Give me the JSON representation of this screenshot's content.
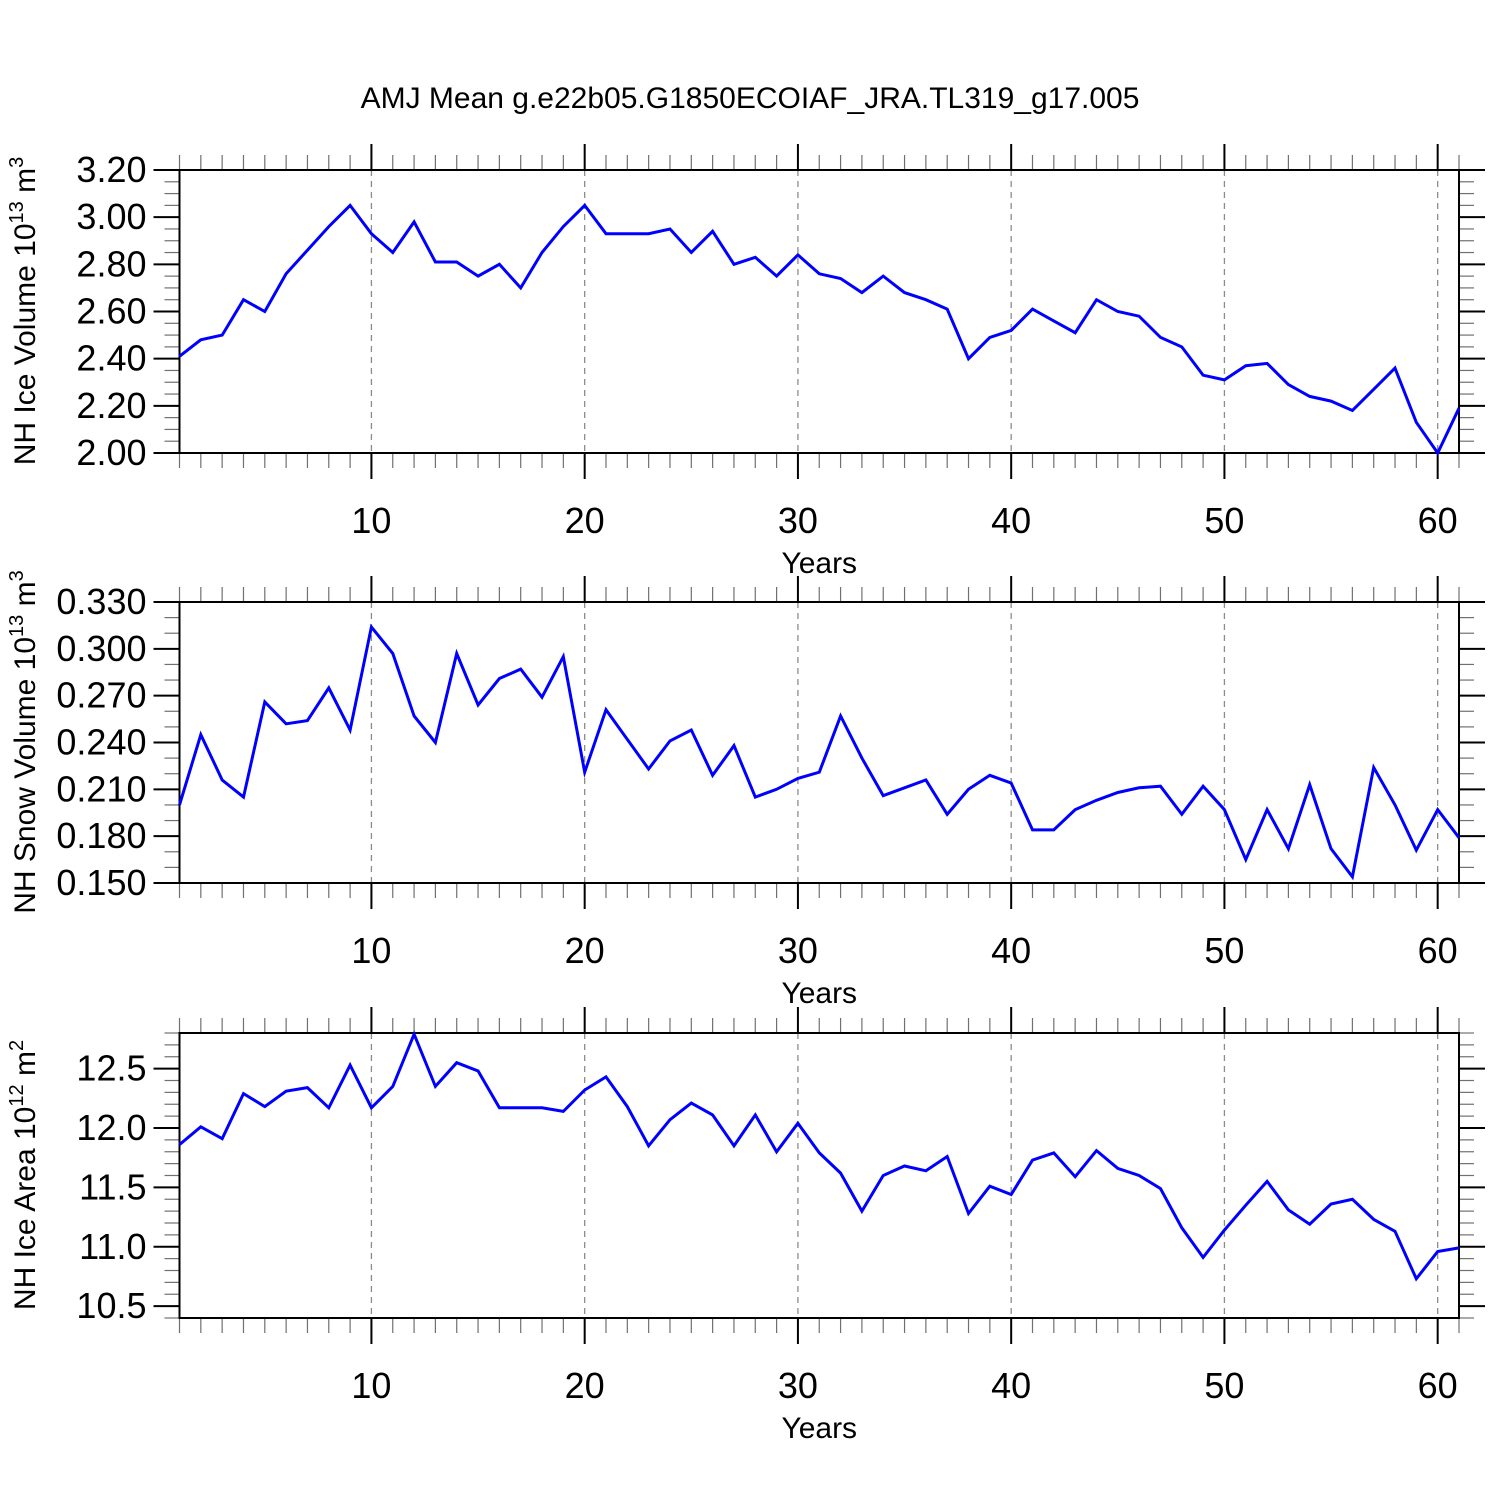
{
  "title": "AMJ Mean g.e22b05.G1850ECOIAF_JRA.TL319_g17.005",
  "colors": {
    "line": "#0000ff",
    "axis": "#000000",
    "grid": "#8c8c8c",
    "minor_tick": "#707070",
    "text": "#000000",
    "background": "#ffffff"
  },
  "years": [
    1,
    2,
    3,
    4,
    5,
    6,
    7,
    8,
    9,
    10,
    11,
    12,
    13,
    14,
    15,
    16,
    17,
    18,
    19,
    20,
    21,
    22,
    23,
    24,
    25,
    26,
    27,
    28,
    29,
    30,
    31,
    32,
    33,
    34,
    35,
    36,
    37,
    38,
    39,
    40,
    41,
    42,
    43,
    44,
    45,
    46,
    47,
    48,
    49,
    50,
    51,
    52,
    53,
    54,
    55,
    56,
    57,
    58,
    59,
    60,
    61
  ],
  "chart_data": [
    {
      "id": "nh-ice-volume",
      "type": "line",
      "ylabel": {
        "base1": "NH Ice Volume 10",
        "sup1": "13",
        "base2": " m",
        "sup2": "3",
        "text": "NH Ice Volume 10^13 m^3"
      },
      "xlabel": "Years",
      "x_range": [
        1,
        61
      ],
      "x_minor_step": 1,
      "xticks": [
        10,
        20,
        30,
        40,
        50,
        60
      ],
      "ylim": [
        2.0,
        3.2
      ],
      "ytick_values": [
        2.0,
        2.2,
        2.4,
        2.6,
        2.8,
        3.0,
        3.2
      ],
      "ytick_labels": [
        "2.00",
        "2.20",
        "2.40",
        "2.60",
        "2.80",
        "3.00",
        "3.20"
      ],
      "ytick_minor_step": 0.05,
      "grid": "vertical-dashed-at-major-x",
      "legend": "none",
      "values": [
        2.41,
        2.48,
        2.5,
        2.65,
        2.6,
        2.76,
        2.86,
        2.96,
        3.05,
        2.93,
        2.85,
        2.98,
        2.81,
        2.81,
        2.75,
        2.8,
        2.7,
        2.85,
        2.96,
        3.05,
        2.93,
        2.93,
        2.93,
        2.95,
        2.85,
        2.94,
        2.8,
        2.83,
        2.75,
        2.84,
        2.76,
        2.74,
        2.68,
        2.75,
        2.68,
        2.65,
        2.61,
        2.4,
        2.49,
        2.52,
        2.61,
        2.56,
        2.51,
        2.65,
        2.6,
        2.58,
        2.49,
        2.45,
        2.33,
        2.31,
        2.37,
        2.38,
        2.29,
        2.24,
        2.22,
        2.18,
        2.27,
        2.36,
        2.13,
        2.0,
        2.19
      ]
    },
    {
      "id": "nh-snow-volume",
      "type": "line",
      "ylabel": {
        "base1": "NH Snow Volume 10",
        "sup1": "13",
        "base2": " m",
        "sup2": "3",
        "text": "NH Snow Volume 10^13 m^3"
      },
      "xlabel": "Years",
      "x_range": [
        1,
        61
      ],
      "x_minor_step": 1,
      "xticks": [
        10,
        20,
        30,
        40,
        50,
        60
      ],
      "ylim": [
        0.15,
        0.33
      ],
      "ytick_values": [
        0.15,
        0.18,
        0.21,
        0.24,
        0.27,
        0.3,
        0.33
      ],
      "ytick_labels": [
        "0.150",
        "0.180",
        "0.210",
        "0.240",
        "0.270",
        "0.300",
        "0.330"
      ],
      "ytick_minor_step": 0.01,
      "grid": "vertical-dashed-at-major-x",
      "legend": "none",
      "values": [
        0.2,
        0.245,
        0.216,
        0.205,
        0.266,
        0.252,
        0.254,
        0.275,
        0.248,
        0.314,
        0.297,
        0.257,
        0.24,
        0.297,
        0.264,
        0.281,
        0.287,
        0.269,
        0.295,
        0.221,
        0.261,
        0.242,
        0.223,
        0.241,
        0.248,
        0.219,
        0.238,
        0.205,
        0.21,
        0.217,
        0.221,
        0.257,
        0.23,
        0.206,
        0.211,
        0.216,
        0.194,
        0.21,
        0.219,
        0.214,
        0.184,
        0.184,
        0.197,
        0.203,
        0.208,
        0.211,
        0.212,
        0.194,
        0.212,
        0.197,
        0.165,
        0.197,
        0.172,
        0.213,
        0.172,
        0.154,
        0.224,
        0.2,
        0.171,
        0.197,
        0.179
      ]
    },
    {
      "id": "nh-ice-area",
      "type": "line",
      "ylabel": {
        "base1": "NH Ice Area 10",
        "sup1": "12",
        "base2": " m",
        "sup2": "2",
        "text": "NH Ice Area 10^12 m^2"
      },
      "xlabel": "Years",
      "x_range": [
        1,
        61
      ],
      "x_minor_step": 1,
      "xticks": [
        10,
        20,
        30,
        40,
        50,
        60
      ],
      "ylim": [
        10.4,
        12.8
      ],
      "ytick_values": [
        10.5,
        11.0,
        11.5,
        12.0,
        12.5
      ],
      "ytick_labels": [
        "10.5",
        "11.0",
        "11.5",
        "12.0",
        "12.5"
      ],
      "ytick_minor_step": 0.1,
      "grid": "vertical-dashed-at-major-x",
      "legend": "none",
      "values": [
        11.86,
        12.01,
        11.91,
        12.29,
        12.18,
        12.31,
        12.34,
        12.17,
        12.53,
        12.17,
        12.35,
        12.79,
        12.35,
        12.55,
        12.48,
        12.17,
        12.17,
        12.17,
        12.14,
        12.32,
        12.43,
        12.18,
        11.85,
        12.07,
        12.21,
        12.11,
        11.85,
        12.11,
        11.8,
        12.04,
        11.79,
        11.62,
        11.3,
        11.6,
        11.68,
        11.64,
        11.76,
        11.28,
        11.51,
        11.44,
        11.73,
        11.79,
        11.59,
        11.81,
        11.66,
        11.6,
        11.49,
        11.16,
        10.91,
        11.14,
        11.35,
        11.55,
        11.31,
        11.19,
        11.36,
        11.4,
        11.23,
        11.13,
        10.73,
        10.96,
        10.99
      ]
    }
  ]
}
